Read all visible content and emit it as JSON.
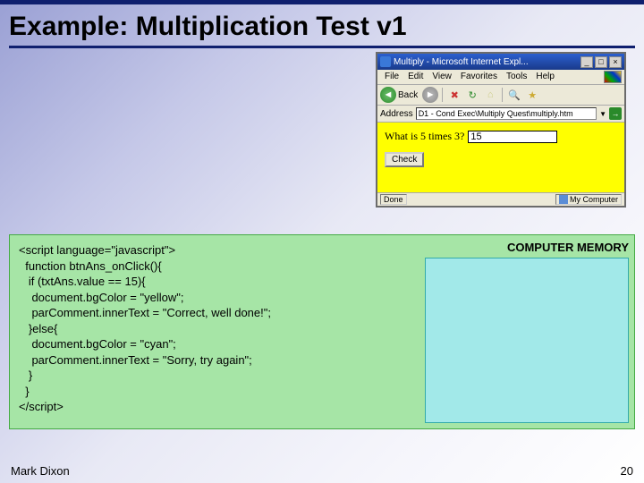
{
  "slide": {
    "title": "Example: Multiplication Test v1",
    "author": "Mark Dixon",
    "page_number": "20"
  },
  "browser": {
    "window_title": "Multiply - Microsoft Internet Expl...",
    "menu": {
      "file": "File",
      "edit": "Edit",
      "view": "View",
      "favorites": "Favorites",
      "tools": "Tools",
      "help": "Help"
    },
    "toolbar": {
      "back_label": "Back"
    },
    "address_label": "Address",
    "address_value": "D1 - Cond Exec\\Multiply Quest\\multiply.htm",
    "content": {
      "question": "What is 5 times 3?",
      "answer_value": "15",
      "check_label": "Check",
      "bg_color": "#ffff00"
    },
    "status": {
      "done": "Done",
      "zone": "My Computer"
    }
  },
  "code": {
    "line1": "<script language=\"javascript\">",
    "line2": "  function btnAns_onClick(){",
    "line3": "   if (txtAns.value == 15){",
    "line4": "    document.bgColor = \"yellow\";",
    "line5": "    parComment.innerText = \"Correct, well done!\";",
    "line6": "   }else{",
    "line7": "    document.bgColor = \"cyan\";",
    "line8": "    parComment.innerText = \"Sorry, try again\";",
    "line9": "   }",
    "line10": "  }",
    "line11": "</script>"
  },
  "memory": {
    "title": "COMPUTER MEMORY"
  },
  "colors": {
    "accent": "#0f1f6e",
    "code_bg": "#a6e5a6",
    "mem_bg": "#a2e9e9",
    "browser_chrome": "#ece9d8"
  }
}
